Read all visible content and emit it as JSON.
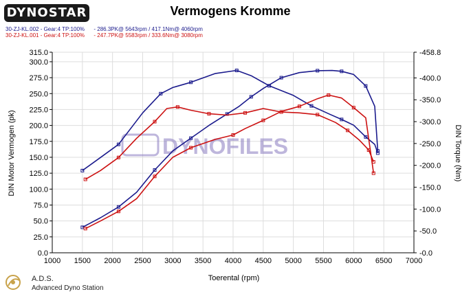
{
  "header": {
    "logo_text": "DYNOSTAR",
    "title": "Vermogens Kromme",
    "runs": [
      {
        "name": "30-ZJ-KL.002",
        "info": "30-ZJ-KL.002 - Gear:4 TP:100%      - 286.3PK@ 5643rpm / 417.1Nm@ 4060rpm"
      },
      {
        "name": "30-ZJ-KL.001",
        "info": "30-ZJ-KL.001 - Gear:4 TP:100%      - 247.7PK@ 5583rpm / 333.6Nm@ 3080rpm"
      }
    ]
  },
  "watermark": "DYNOFILES",
  "footer": {
    "title": "A.D.S.",
    "subtitle": "Advanced Dyno Station"
  },
  "colors": {
    "run_002": "#1a1a8c",
    "run_001": "#cc1111",
    "grid": "#dddddd",
    "watermark": "#8a7cc0"
  },
  "chart_data": {
    "type": "line",
    "title": "Vermogens Kromme",
    "xlabel": "Toerental (rpm)",
    "ylabel": "DIN Motor Vermogen (pk)",
    "y2label": "DIN Torque (Nm)",
    "xlim": [
      1000,
      7000
    ],
    "ylim": [
      0,
      315
    ],
    "y2lim": [
      0,
      458.8
    ],
    "x_ticks": [
      "1000",
      "1500",
      "2000",
      "2500",
      "3000",
      "3500",
      "4000",
      "4500",
      "5000",
      "5500",
      "6000",
      "6500",
      "7000"
    ],
    "y_ticks": [
      "0.0",
      "25.0",
      "50.0",
      "75.0",
      "100.0",
      "125.0",
      "150.0",
      "175.0",
      "200.0",
      "225.0",
      "250.0",
      "275.0",
      "300.0",
      "315.0"
    ],
    "y2_ticks": [
      "-0.0",
      "-50.0",
      "-100.0",
      "-150.0",
      "-200.0",
      "-250.0",
      "-300.0",
      "-350.0",
      "-400.0",
      "-458.8"
    ],
    "grid": true,
    "series": [
      {
        "name": "30-ZJ-KL.002",
        "quantity": "power",
        "axis": "left",
        "color": "#1a1a8c",
        "x": [
          1500,
          1800,
          2100,
          2400,
          2700,
          3000,
          3300,
          3600,
          3900,
          4100,
          4300,
          4500,
          4800,
          5100,
          5400,
          5643,
          5800,
          6000,
          6200,
          6350,
          6400
        ],
        "y": [
          40,
          55,
          72,
          95,
          130,
          160,
          180,
          200,
          218,
          230,
          245,
          258,
          275,
          283,
          286,
          286.3,
          285,
          280,
          262,
          230,
          160
        ]
      },
      {
        "name": "30-ZJ-KL.002",
        "quantity": "torque",
        "axis": "right",
        "color": "#1a1a8c",
        "x": [
          1500,
          1800,
          2100,
          2500,
          2800,
          3000,
          3300,
          3700,
          4060,
          4300,
          4600,
          5000,
          5300,
          5600,
          5800,
          6000,
          6200,
          6350,
          6400
        ],
        "y": [
          188,
          218,
          248,
          320,
          364,
          378,
          390,
          410,
          417.1,
          405,
          382,
          360,
          336,
          317,
          305,
          292,
          265,
          248,
          228
        ]
      },
      {
        "name": "30-ZJ-KL.001",
        "quantity": "power",
        "axis": "left",
        "color": "#cc1111",
        "x": [
          1550,
          1800,
          2100,
          2400,
          2700,
          3000,
          3300,
          3700,
          4000,
          4200,
          4500,
          4800,
          5100,
          5400,
          5583,
          5800,
          6000,
          6200,
          6330
        ],
        "y": [
          38,
          50,
          65,
          85,
          120,
          150,
          165,
          178,
          185,
          195,
          208,
          222,
          230,
          242,
          247.7,
          243,
          228,
          212,
          125
        ]
      },
      {
        "name": "30-ZJ-KL.001",
        "quantity": "torque",
        "axis": "right",
        "color": "#cc1111",
        "x": [
          1550,
          1800,
          2100,
          2400,
          2700,
          2900,
          3080,
          3300,
          3600,
          3900,
          4200,
          4500,
          4800,
          5100,
          5400,
          5700,
          5900,
          6100,
          6250,
          6330
        ],
        "y": [
          168,
          188,
          218,
          262,
          300,
          330,
          333.6,
          326,
          318,
          315,
          320,
          330,
          322,
          320,
          316,
          298,
          280,
          257,
          235,
          208
        ]
      }
    ]
  }
}
